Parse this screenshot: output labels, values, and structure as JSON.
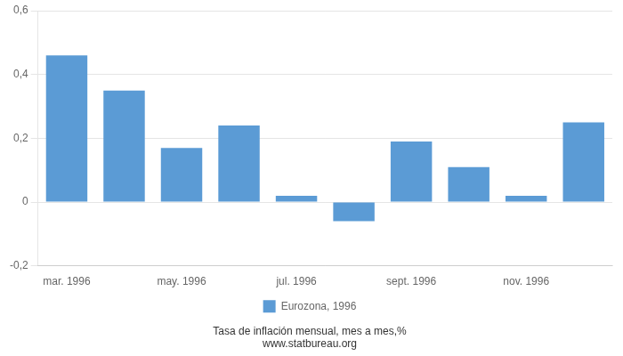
{
  "chart_data": {
    "type": "bar",
    "categories": [
      "mar. 1996",
      null,
      "may. 1996",
      null,
      "jul. 1996",
      null,
      "sept. 1996",
      null,
      "nov. 1996",
      null
    ],
    "series": [
      {
        "name": "Eurozona, 1996",
        "color": "#5B9BD5",
        "values": [
          0.46,
          0.35,
          0.17,
          0.24,
          0.02,
          -0.06,
          0.19,
          0.11,
          0.02,
          0.25
        ]
      }
    ],
    "ylim": [
      -0.2,
      0.6
    ],
    "yticks": [
      {
        "value": -0.2,
        "label": "-0,2"
      },
      0,
      {
        "value": 0.2,
        "label": "0,2"
      },
      {
        "value": 0.4,
        "label": "0,4"
      },
      {
        "value": 0.6,
        "label": "0,6"
      }
    ],
    "grid": true,
    "legend": "bottom",
    "annotations": [
      "Tasa de inflación mensual, mes a mes,%",
      "www.statbureau.org"
    ]
  }
}
